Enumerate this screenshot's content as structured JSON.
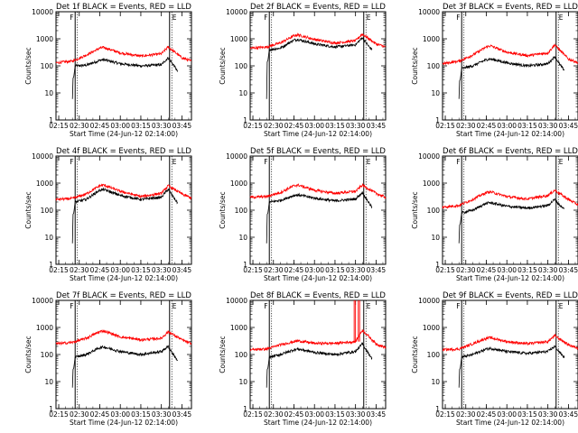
{
  "figure": {
    "common_xlabel": "Start Time (24-Jun-12 02:14:00)",
    "common_ylabel": "Counts/sec",
    "time_ticks": [
      "02:15",
      "02:30",
      "02:45",
      "03:00",
      "03:15",
      "03:30",
      "03:45"
    ],
    "y_ticks": [
      "1",
      "10",
      "100",
      "1000",
      "10000"
    ],
    "colors": {
      "events": "#000000",
      "lld": "#ff0000",
      "axes": "#000000"
    }
  },
  "chart_data": [
    {
      "type": "line",
      "title": "Det 1f BLACK = Events, RED = LLD",
      "xlabel": "Start Time (24-Jun-12 02:14:00)",
      "ylabel": "Counts/sec",
      "ylim": [
        1,
        10000
      ],
      "yscale": "log",
      "x_range": [
        "02:13",
        "03:52"
      ],
      "marker_left": "F",
      "marker_right": "E",
      "marker_times": [
        "02:27",
        "03:36"
      ],
      "series": [
        {
          "name": "Events",
          "points": [
            [
              "02:27",
              100
            ],
            [
              "02:35",
              105
            ],
            [
              "02:45",
              160
            ],
            [
              "02:48",
              170
            ],
            [
              "03:00",
              120
            ],
            [
              "03:15",
              100
            ],
            [
              "03:30",
              110
            ],
            [
              "03:35",
              200
            ],
            [
              "03:40",
              90
            ],
            [
              "03:42",
              60
            ]
          ]
        },
        {
          "name": "LLD",
          "points": [
            [
              "02:13",
              130
            ],
            [
              "02:25",
              150
            ],
            [
              "02:35",
              250
            ],
            [
              "02:45",
              450
            ],
            [
              "02:48",
              480
            ],
            [
              "03:00",
              300
            ],
            [
              "03:15",
              230
            ],
            [
              "03:30",
              280
            ],
            [
              "03:35",
              500
            ],
            [
              "03:45",
              200
            ],
            [
              "03:52",
              150
            ]
          ]
        }
      ]
    },
    {
      "type": "line",
      "title": "Det 2f BLACK = Events, RED = LLD",
      "xlabel": "Start Time (24-Jun-12 02:14:00)",
      "ylabel": "Counts/sec",
      "ylim": [
        1,
        10000
      ],
      "yscale": "log",
      "x_range": [
        "02:13",
        "03:52"
      ],
      "marker_left": "F",
      "marker_right": "E",
      "marker_times": [
        "02:27",
        "03:36"
      ],
      "series": [
        {
          "name": "Events",
          "points": [
            [
              "02:27",
              400
            ],
            [
              "02:35",
              450
            ],
            [
              "02:45",
              900
            ],
            [
              "02:48",
              950
            ],
            [
              "03:00",
              650
            ],
            [
              "03:15",
              500
            ],
            [
              "03:30",
              600
            ],
            [
              "03:35",
              1100
            ],
            [
              "03:40",
              500
            ],
            [
              "03:42",
              400
            ]
          ]
        },
        {
          "name": "LLD",
          "points": [
            [
              "02:13",
              450
            ],
            [
              "02:25",
              500
            ],
            [
              "02:35",
              700
            ],
            [
              "02:45",
              1300
            ],
            [
              "02:48",
              1400
            ],
            [
              "03:00",
              950
            ],
            [
              "03:15",
              700
            ],
            [
              "03:30",
              850
            ],
            [
              "03:35",
              1500
            ],
            [
              "03:45",
              650
            ],
            [
              "03:52",
              500
            ]
          ]
        }
      ]
    },
    {
      "type": "line",
      "title": "Det 3f BLACK = Events, RED = LLD",
      "xlabel": "Start Time (24-Jun-12 02:14:00)",
      "ylabel": "Counts/sec",
      "ylim": [
        1,
        10000
      ],
      "yscale": "log",
      "x_range": [
        "02:13",
        "03:52"
      ],
      "marker_left": "F",
      "marker_right": "E",
      "marker_times": [
        "02:27",
        "03:36"
      ],
      "series": [
        {
          "name": "Events",
          "points": [
            [
              "02:27",
              80
            ],
            [
              "02:35",
              100
            ],
            [
              "02:45",
              170
            ],
            [
              "02:48",
              180
            ],
            [
              "03:00",
              130
            ],
            [
              "03:15",
              100
            ],
            [
              "03:30",
              120
            ],
            [
              "03:35",
              220
            ],
            [
              "03:40",
              90
            ],
            [
              "03:42",
              70
            ]
          ]
        },
        {
          "name": "LLD",
          "points": [
            [
              "02:13",
              120
            ],
            [
              "02:25",
              150
            ],
            [
              "02:35",
              250
            ],
            [
              "02:45",
              500
            ],
            [
              "02:48",
              550
            ],
            [
              "03:00",
              320
            ],
            [
              "03:15",
              240
            ],
            [
              "03:30",
              300
            ],
            [
              "03:35",
              600
            ],
            [
              "03:45",
              180
            ],
            [
              "03:52",
              130
            ]
          ]
        }
      ]
    },
    {
      "type": "line",
      "title": "Det 4f BLACK = Events, RED = LLD",
      "xlabel": "Start Time (24-Jun-12 02:14:00)",
      "ylabel": "Counts/sec",
      "ylim": [
        1,
        10000
      ],
      "yscale": "log",
      "x_range": [
        "02:13",
        "03:52"
      ],
      "marker_left": "F",
      "marker_right": "E",
      "marker_times": [
        "02:27",
        "03:36"
      ],
      "series": [
        {
          "name": "Events",
          "points": [
            [
              "02:27",
              200
            ],
            [
              "02:35",
              250
            ],
            [
              "02:45",
              550
            ],
            [
              "02:48",
              580
            ],
            [
              "03:00",
              350
            ],
            [
              "03:15",
              250
            ],
            [
              "03:30",
              300
            ],
            [
              "03:35",
              600
            ],
            [
              "03:40",
              250
            ],
            [
              "03:42",
              180
            ]
          ]
        },
        {
          "name": "LLD",
          "points": [
            [
              "02:13",
              250
            ],
            [
              "02:25",
              270
            ],
            [
              "02:35",
              400
            ],
            [
              "02:45",
              800
            ],
            [
              "02:48",
              850
            ],
            [
              "03:00",
              500
            ],
            [
              "03:15",
              320
            ],
            [
              "03:30",
              420
            ],
            [
              "03:35",
              800
            ],
            [
              "03:45",
              400
            ],
            [
              "03:52",
              280
            ]
          ]
        }
      ]
    },
    {
      "type": "line",
      "title": "Det 5f BLACK = Events, RED = LLD",
      "xlabel": "Start Time (24-Jun-12 02:14:00)",
      "ylabel": "Counts/sec",
      "ylim": [
        1,
        10000
      ],
      "yscale": "log",
      "x_range": [
        "02:13",
        "03:52"
      ],
      "marker_left": "F",
      "marker_right": "E",
      "marker_times": [
        "02:27",
        "03:36"
      ],
      "series": [
        {
          "name": "Events",
          "points": [
            [
              "02:27",
              200
            ],
            [
              "02:35",
              230
            ],
            [
              "02:45",
              350
            ],
            [
              "02:48",
              370
            ],
            [
              "03:00",
              280
            ],
            [
              "03:15",
              220
            ],
            [
              "03:30",
              260
            ],
            [
              "03:35",
              450
            ],
            [
              "03:40",
              180
            ],
            [
              "03:42",
              130
            ]
          ]
        },
        {
          "name": "LLD",
          "points": [
            [
              "02:13",
              300
            ],
            [
              "02:25",
              320
            ],
            [
              "02:35",
              450
            ],
            [
              "02:45",
              800
            ],
            [
              "02:48",
              850
            ],
            [
              "03:00",
              550
            ],
            [
              "03:15",
              420
            ],
            [
              "03:30",
              500
            ],
            [
              "03:35",
              850
            ],
            [
              "03:45",
              420
            ],
            [
              "03:52",
              300
            ]
          ]
        }
      ]
    },
    {
      "type": "line",
      "title": "Det 6f BLACK = Events, RED = LLD",
      "xlabel": "Start Time (24-Jun-12 02:14:00)",
      "ylabel": "Counts/sec",
      "ylim": [
        1,
        10000
      ],
      "yscale": "log",
      "x_range": [
        "02:13",
        "03:52"
      ],
      "marker_left": "F",
      "marker_right": "E",
      "marker_times": [
        "02:27",
        "03:36"
      ],
      "series": [
        {
          "name": "Events",
          "points": [
            [
              "02:27",
              80
            ],
            [
              "02:35",
              100
            ],
            [
              "02:45",
              180
            ],
            [
              "02:48",
              190
            ],
            [
              "03:00",
              140
            ],
            [
              "03:15",
              120
            ],
            [
              "03:30",
              150
            ],
            [
              "03:35",
              250
            ],
            [
              "03:40",
              130
            ],
            [
              "03:42",
              110
            ]
          ]
        },
        {
          "name": "LLD",
          "points": [
            [
              "02:13",
              130
            ],
            [
              "02:25",
              150
            ],
            [
              "02:35",
              250
            ],
            [
              "02:45",
              450
            ],
            [
              "02:48",
              480
            ],
            [
              "03:00",
              320
            ],
            [
              "03:15",
              260
            ],
            [
              "03:30",
              350
            ],
            [
              "03:35",
              550
            ],
            [
              "03:45",
              250
            ],
            [
              "03:52",
              160
            ]
          ]
        }
      ]
    },
    {
      "type": "line",
      "title": "Det 7f BLACK = Events, RED = LLD",
      "xlabel": "Start Time (24-Jun-12 02:14:00)",
      "ylabel": "Counts/sec",
      "ylim": [
        1,
        10000
      ],
      "yscale": "log",
      "x_range": [
        "02:13",
        "03:52"
      ],
      "marker_left": "F",
      "marker_right": "E",
      "marker_times": [
        "02:27",
        "03:36"
      ],
      "series": [
        {
          "name": "Events",
          "points": [
            [
              "02:27",
              80
            ],
            [
              "02:35",
              100
            ],
            [
              "02:45",
              180
            ],
            [
              "02:48",
              190
            ],
            [
              "03:00",
              130
            ],
            [
              "03:15",
              100
            ],
            [
              "03:30",
              130
            ],
            [
              "03:35",
              200
            ],
            [
              "03:40",
              80
            ],
            [
              "03:42",
              60
            ]
          ]
        },
        {
          "name": "LLD",
          "points": [
            [
              "02:13",
              250
            ],
            [
              "02:25",
              280
            ],
            [
              "02:35",
              400
            ],
            [
              "02:45",
              700
            ],
            [
              "02:48",
              750
            ],
            [
              "03:00",
              450
            ],
            [
              "03:15",
              350
            ],
            [
              "03:30",
              400
            ],
            [
              "03:35",
              700
            ],
            [
              "03:45",
              350
            ],
            [
              "03:52",
              250
            ]
          ]
        }
      ]
    },
    {
      "type": "line",
      "title": "Det 8f BLACK = Events, RED = LLD",
      "xlabel": "Start Time (24-Jun-12 02:14:00)",
      "ylabel": "Counts/sec",
      "ylim": [
        1,
        10000
      ],
      "yscale": "log",
      "x_range": [
        "02:13",
        "03:52"
      ],
      "marker_left": "F",
      "marker_right": "E",
      "marker_times": [
        "02:27",
        "03:36"
      ],
      "spikes": [
        {
          "time": "03:29",
          "value": 10000
        },
        {
          "time": "03:32",
          "value": 10000
        }
      ],
      "series": [
        {
          "name": "Events",
          "points": [
            [
              "02:27",
              80
            ],
            [
              "02:35",
              100
            ],
            [
              "02:45",
              150
            ],
            [
              "02:48",
              160
            ],
            [
              "03:00",
              120
            ],
            [
              "03:15",
              100
            ],
            [
              "03:30",
              130
            ],
            [
              "03:35",
              250
            ],
            [
              "03:40",
              100
            ],
            [
              "03:42",
              70
            ]
          ]
        },
        {
          "name": "LLD",
          "points": [
            [
              "02:13",
              150
            ],
            [
              "02:25",
              160
            ],
            [
              "02:35",
              230
            ],
            [
              "02:45",
              300
            ],
            [
              "02:48",
              320
            ],
            [
              "03:00",
              260
            ],
            [
              "03:15",
              260
            ],
            [
              "03:30",
              300
            ],
            [
              "03:35",
              800
            ],
            [
              "03:45",
              250
            ],
            [
              "03:52",
              180
            ]
          ]
        }
      ]
    },
    {
      "type": "line",
      "title": "Det 9f BLACK = Events, RED = LLD",
      "xlabel": "Start Time (24-Jun-12 02:14:00)",
      "ylabel": "Counts/sec",
      "ylim": [
        1,
        10000
      ],
      "yscale": "log",
      "x_range": [
        "02:13",
        "03:52"
      ],
      "marker_left": "F",
      "marker_right": "E",
      "marker_times": [
        "02:27",
        "03:36"
      ],
      "series": [
        {
          "name": "Events",
          "points": [
            [
              "02:27",
              80
            ],
            [
              "02:35",
              100
            ],
            [
              "02:45",
              160
            ],
            [
              "02:48",
              170
            ],
            [
              "03:00",
              130
            ],
            [
              "03:15",
              110
            ],
            [
              "03:30",
              130
            ],
            [
              "03:35",
              200
            ],
            [
              "03:40",
              100
            ],
            [
              "03:42",
              80
            ]
          ]
        },
        {
          "name": "LLD",
          "points": [
            [
              "02:13",
              150
            ],
            [
              "02:25",
              160
            ],
            [
              "02:35",
              250
            ],
            [
              "02:45",
              400
            ],
            [
              "02:48",
              420
            ],
            [
              "03:00",
              300
            ],
            [
              "03:15",
              250
            ],
            [
              "03:30",
              300
            ],
            [
              "03:35",
              500
            ],
            [
              "03:45",
              230
            ],
            [
              "03:52",
              170
            ]
          ]
        }
      ]
    }
  ]
}
